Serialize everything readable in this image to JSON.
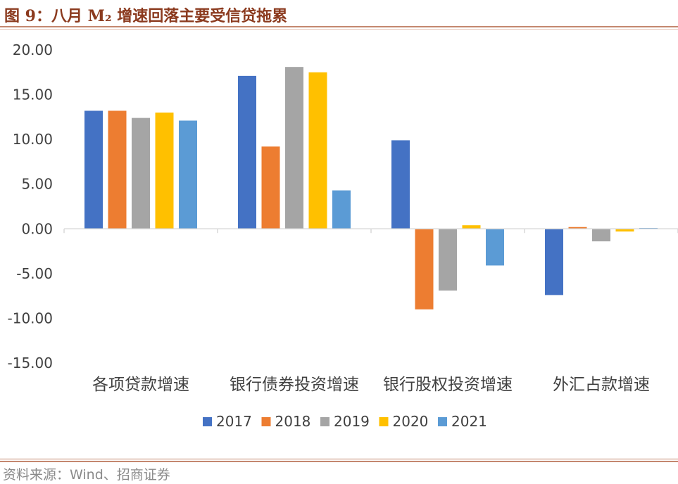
{
  "header": {
    "title": "图 9：八月 M₂ 增速回落主要受信贷拖累"
  },
  "source": "资料来源：Wind、招商证券",
  "colors": {
    "title": "#8b3a1e",
    "rule": "#c4876f",
    "axis": "#d9d9d9",
    "text": "#404040"
  },
  "chart_data": {
    "type": "bar",
    "title": "",
    "xlabel": "",
    "ylabel": "",
    "categories": [
      "各项贷款增速",
      "银行债券投资增速",
      "银行股权投资增速",
      "外汇占款增速"
    ],
    "ylim": [
      -15,
      20
    ],
    "yticks": [
      "20.00",
      "15.00",
      "10.00",
      "5.00",
      "0.00",
      "-5.00",
      "-10.00",
      "-15.00"
    ],
    "ytick_values": [
      20,
      15,
      10,
      5,
      0,
      -5,
      -10,
      -15
    ],
    "legend_position": "bottom",
    "grid": false,
    "series": [
      {
        "name": "2017",
        "color": "#4472c4",
        "values": [
          13.2,
          17.1,
          9.9,
          -7.4
        ]
      },
      {
        "name": "2018",
        "color": "#ed7d31",
        "values": [
          13.2,
          9.2,
          -9.0,
          0.2
        ]
      },
      {
        "name": "2019",
        "color": "#a5a5a5",
        "values": [
          12.4,
          18.1,
          -6.9,
          -1.4
        ]
      },
      {
        "name": "2020",
        "color": "#ffc000",
        "values": [
          13.0,
          17.5,
          0.4,
          -0.3
        ]
      },
      {
        "name": "2021",
        "color": "#5b9bd5",
        "values": [
          12.1,
          4.3,
          -4.1,
          0.1
        ]
      }
    ]
  }
}
